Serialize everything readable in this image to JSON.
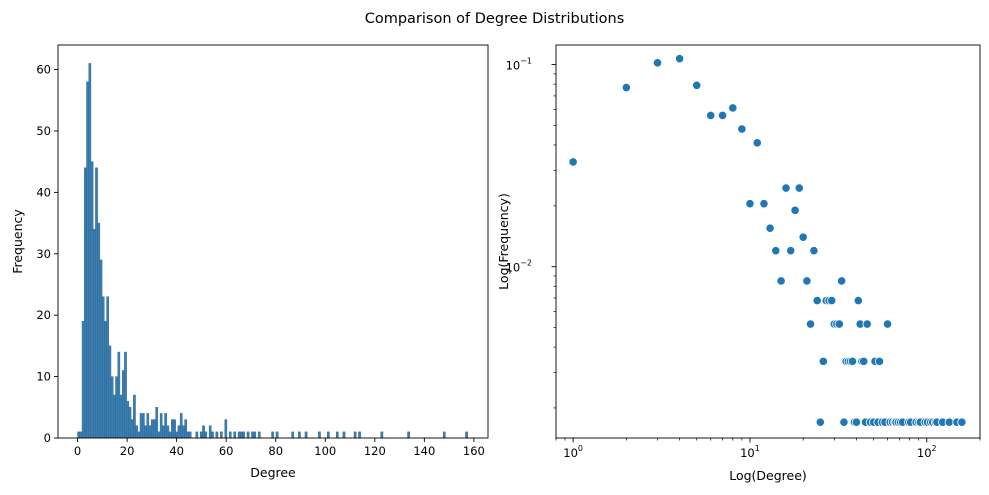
{
  "suptitle": "Comparison of Degree Distributions",
  "colors": {
    "bar_fill": "#3b7fb2",
    "bar_edge": "#2c5f88",
    "point": "#1f77b4",
    "axis": "#000000",
    "background": "#ffffff"
  },
  "chart_data": [
    {
      "type": "histogram",
      "xlabel": "Degree",
      "ylabel": "Frequency",
      "xlim": [
        -7.9,
        165.7
      ],
      "ylim": [
        0,
        64
      ],
      "xticks": [
        0,
        20,
        40,
        60,
        80,
        100,
        120,
        140,
        160
      ],
      "yticks": [
        0,
        10,
        20,
        30,
        40,
        50,
        60
      ],
      "bins": [
        {
          "x0": 0.0,
          "x1": 0.9,
          "count": 1
        },
        {
          "x0": 0.9,
          "x1": 1.8,
          "count": 1
        },
        {
          "x0": 1.8,
          "x1": 2.7,
          "count": 19
        },
        {
          "x0": 2.7,
          "x1": 3.6,
          "count": 44
        },
        {
          "x0": 3.6,
          "x1": 4.5,
          "count": 58
        },
        {
          "x0": 4.5,
          "x1": 5.4,
          "count": 61
        },
        {
          "x0": 5.4,
          "x1": 6.3,
          "count": 45
        },
        {
          "x0": 6.3,
          "x1": 7.2,
          "count": 34
        },
        {
          "x0": 7.2,
          "x1": 8.1,
          "count": 44
        },
        {
          "x0": 8.1,
          "x1": 9.0,
          "count": 35
        },
        {
          "x0": 9.0,
          "x1": 9.9,
          "count": 29
        },
        {
          "x0": 9.9,
          "x1": 10.8,
          "count": 23
        },
        {
          "x0": 10.8,
          "x1": 11.7,
          "count": 19
        },
        {
          "x0": 11.7,
          "x1": 12.6,
          "count": 23
        },
        {
          "x0": 12.6,
          "x1": 13.5,
          "count": 15
        },
        {
          "x0": 13.5,
          "x1": 14.4,
          "count": 10
        },
        {
          "x0": 14.4,
          "x1": 15.3,
          "count": 7
        },
        {
          "x0": 15.3,
          "x1": 16.2,
          "count": 10
        },
        {
          "x0": 16.2,
          "x1": 17.1,
          "count": 14
        },
        {
          "x0": 17.1,
          "x1": 18.0,
          "count": 7
        },
        {
          "x0": 18.0,
          "x1": 18.9,
          "count": 11
        },
        {
          "x0": 18.9,
          "x1": 19.8,
          "count": 14
        },
        {
          "x0": 19.8,
          "x1": 20.7,
          "count": 6
        },
        {
          "x0": 20.7,
          "x1": 21.6,
          "count": 5
        },
        {
          "x0": 21.6,
          "x1": 22.5,
          "count": 3
        },
        {
          "x0": 22.5,
          "x1": 23.4,
          "count": 7
        },
        {
          "x0": 23.4,
          "x1": 24.3,
          "count": 2
        },
        {
          "x0": 24.3,
          "x1": 25.2,
          "count": 1
        },
        {
          "x0": 25.2,
          "x1": 26.1,
          "count": 4
        },
        {
          "x0": 26.1,
          "x1": 27.0,
          "count": 4
        },
        {
          "x0": 27.0,
          "x1": 27.9,
          "count": 2
        },
        {
          "x0": 27.9,
          "x1": 28.8,
          "count": 4
        },
        {
          "x0": 28.8,
          "x1": 29.7,
          "count": 2
        },
        {
          "x0": 29.7,
          "x1": 30.6,
          "count": 3
        },
        {
          "x0": 30.6,
          "x1": 31.5,
          "count": 3
        },
        {
          "x0": 31.5,
          "x1": 32.4,
          "count": 5
        },
        {
          "x0": 32.4,
          "x1": 33.3,
          "count": 1
        },
        {
          "x0": 33.3,
          "x1": 34.2,
          "count": 4
        },
        {
          "x0": 34.2,
          "x1": 35.1,
          "count": 2
        },
        {
          "x0": 35.1,
          "x1": 36.0,
          "count": 4
        },
        {
          "x0": 36.0,
          "x1": 36.9,
          "count": 2
        },
        {
          "x0": 36.9,
          "x1": 37.8,
          "count": 1
        },
        {
          "x0": 37.8,
          "x1": 38.7,
          "count": 3
        },
        {
          "x0": 38.7,
          "x1": 39.6,
          "count": 3
        },
        {
          "x0": 39.6,
          "x1": 40.5,
          "count": 1
        },
        {
          "x0": 40.5,
          "x1": 41.4,
          "count": 2
        },
        {
          "x0": 41.4,
          "x1": 42.3,
          "count": 4
        },
        {
          "x0": 42.3,
          "x1": 43.2,
          "count": 2
        },
        {
          "x0": 43.2,
          "x1": 44.1,
          "count": 3
        },
        {
          "x0": 44.1,
          "x1": 45.0,
          "count": 1
        },
        {
          "x0": 45.0,
          "x1": 45.9,
          "count": 1
        },
        {
          "x0": 47.7,
          "x1": 48.6,
          "count": 1
        },
        {
          "x0": 49.5,
          "x1": 50.4,
          "count": 1
        },
        {
          "x0": 50.4,
          "x1": 51.3,
          "count": 2
        },
        {
          "x0": 51.3,
          "x1": 52.2,
          "count": 1
        },
        {
          "x0": 53.1,
          "x1": 54.0,
          "count": 2
        },
        {
          "x0": 54.0,
          "x1": 54.9,
          "count": 1
        },
        {
          "x0": 55.8,
          "x1": 56.7,
          "count": 1
        },
        {
          "x0": 57.6,
          "x1": 58.5,
          "count": 1
        },
        {
          "x0": 59.4,
          "x1": 60.3,
          "count": 3
        },
        {
          "x0": 61.2,
          "x1": 62.1,
          "count": 1
        },
        {
          "x0": 63.0,
          "x1": 63.9,
          "count": 1
        },
        {
          "x0": 64.8,
          "x1": 65.7,
          "count": 1
        },
        {
          "x0": 65.7,
          "x1": 66.6,
          "count": 1
        },
        {
          "x0": 66.6,
          "x1": 67.5,
          "count": 1
        },
        {
          "x0": 68.4,
          "x1": 69.3,
          "count": 1
        },
        {
          "x0": 70.2,
          "x1": 71.1,
          "count": 1
        },
        {
          "x0": 71.1,
          "x1": 72.0,
          "count": 1
        },
        {
          "x0": 72.9,
          "x1": 73.8,
          "count": 1
        },
        {
          "x0": 78.3,
          "x1": 79.2,
          "count": 1
        },
        {
          "x0": 80.1,
          "x1": 81.0,
          "count": 1
        },
        {
          "x0": 86.4,
          "x1": 87.3,
          "count": 1
        },
        {
          "x0": 89.1,
          "x1": 90.0,
          "count": 1
        },
        {
          "x0": 91.8,
          "x1": 92.7,
          "count": 1
        },
        {
          "x0": 97.2,
          "x1": 98.1,
          "count": 1
        },
        {
          "x0": 100.8,
          "x1": 101.7,
          "count": 1
        },
        {
          "x0": 104.4,
          "x1": 105.3,
          "count": 1
        },
        {
          "x0": 107.1,
          "x1": 108.0,
          "count": 1
        },
        {
          "x0": 111.6,
          "x1": 112.5,
          "count": 1
        },
        {
          "x0": 113.4,
          "x1": 114.3,
          "count": 1
        },
        {
          "x0": 122.4,
          "x1": 123.3,
          "count": 1
        },
        {
          "x0": 133.2,
          "x1": 134.1,
          "count": 1
        },
        {
          "x0": 147.6,
          "x1": 148.5,
          "count": 1
        },
        {
          "x0": 156.6,
          "x1": 157.5,
          "count": 1
        }
      ]
    },
    {
      "type": "scatter",
      "xscale": "log",
      "yscale": "log",
      "xlabel": "Log(Degree)",
      "ylabel": "Log(Frequency)",
      "xlim": [
        0.8,
        200
      ],
      "ylim": [
        0.00142,
        0.125
      ],
      "xticks": [
        {
          "value": 1,
          "base": "10",
          "exp": "0"
        },
        {
          "value": 10,
          "base": "10",
          "exp": "1"
        },
        {
          "value": 100,
          "base": "10",
          "exp": "2"
        }
      ],
      "yticks": [
        {
          "value": 0.01,
          "base": "10",
          "exp": "−2"
        },
        {
          "value": 0.1,
          "base": "10",
          "exp": "−1"
        }
      ],
      "points": [
        [
          1,
          0.033
        ],
        [
          2,
          0.077
        ],
        [
          3,
          0.102
        ],
        [
          4,
          0.107
        ],
        [
          5,
          0.079
        ],
        [
          6,
          0.056
        ],
        [
          7,
          0.056
        ],
        [
          8,
          0.061
        ],
        [
          9,
          0.048
        ],
        [
          10,
          0.0205
        ],
        [
          11,
          0.041
        ],
        [
          12,
          0.0205
        ],
        [
          13,
          0.0155
        ],
        [
          14,
          0.012
        ],
        [
          15,
          0.0085
        ],
        [
          16,
          0.0245
        ],
        [
          17,
          0.012
        ],
        [
          18,
          0.019
        ],
        [
          19,
          0.0245
        ],
        [
          20,
          0.014
        ],
        [
          21,
          0.0085
        ],
        [
          22,
          0.0052
        ],
        [
          23,
          0.012
        ],
        [
          24,
          0.0068
        ],
        [
          25,
          0.0017
        ],
        [
          26,
          0.0034
        ],
        [
          27,
          0.0068
        ],
        [
          28,
          0.0068
        ],
        [
          29,
          0.0068
        ],
        [
          30,
          0.0052
        ],
        [
          31,
          0.0052
        ],
        [
          32,
          0.0052
        ],
        [
          33,
          0.0085
        ],
        [
          34,
          0.0017
        ],
        [
          35,
          0.0034
        ],
        [
          36,
          0.0034
        ],
        [
          37,
          0.0034
        ],
        [
          38,
          0.0034
        ],
        [
          39,
          0.0017
        ],
        [
          40,
          0.0017
        ],
        [
          41,
          0.0068
        ],
        [
          42,
          0.0052
        ],
        [
          43,
          0.0034
        ],
        [
          44,
          0.0034
        ],
        [
          45,
          0.0017
        ],
        [
          46,
          0.0052
        ],
        [
          48,
          0.0017
        ],
        [
          50,
          0.0017
        ],
        [
          51,
          0.0034
        ],
        [
          53,
          0.0017
        ],
        [
          54,
          0.0034
        ],
        [
          56,
          0.0017
        ],
        [
          58,
          0.0017
        ],
        [
          60,
          0.0052
        ],
        [
          62,
          0.0017
        ],
        [
          64,
          0.0017
        ],
        [
          66,
          0.0017
        ],
        [
          67,
          0.0017
        ],
        [
          69,
          0.0017
        ],
        [
          71,
          0.0017
        ],
        [
          73,
          0.0017
        ],
        [
          79,
          0.0017
        ],
        [
          81,
          0.0017
        ],
        [
          87,
          0.0017
        ],
        [
          90,
          0.0017
        ],
        [
          92,
          0.0017
        ],
        [
          98,
          0.0017
        ],
        [
          101,
          0.0017
        ],
        [
          105,
          0.0017
        ],
        [
          108,
          0.0017
        ],
        [
          112,
          0.0017
        ],
        [
          114,
          0.0017
        ],
        [
          123,
          0.0017
        ],
        [
          134,
          0.0017
        ],
        [
          148,
          0.0017
        ],
        [
          158,
          0.0017
        ]
      ]
    }
  ]
}
